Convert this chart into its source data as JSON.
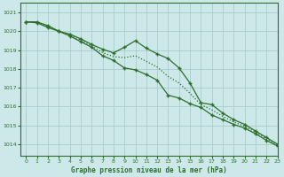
{
  "title": "Graphe pression niveau de la mer (hPa)",
  "background_color": "#cce8e8",
  "grid_color": "#aacccc",
  "line_color": "#2d6e2d",
  "xlim": [
    -0.5,
    23
  ],
  "ylim": [
    1013.4,
    1021.5
  ],
  "yticks": [
    1014,
    1015,
    1016,
    1017,
    1018,
    1019,
    1020,
    1021
  ],
  "xticks": [
    0,
    1,
    2,
    3,
    4,
    5,
    6,
    7,
    8,
    9,
    10,
    11,
    12,
    13,
    14,
    15,
    16,
    17,
    18,
    19,
    20,
    21,
    22,
    23
  ],
  "series_upper": [
    1020.5,
    1020.5,
    1020.3,
    1020.0,
    1019.85,
    1019.6,
    1019.3,
    1019.05,
    1018.85,
    1019.15,
    1019.5,
    1019.1,
    1018.8,
    1018.55,
    1018.05,
    1017.25,
    1016.2,
    1016.1,
    1015.65,
    1015.3,
    1015.05,
    1014.7,
    1014.35,
    1014.0
  ],
  "series_lower": [
    1020.5,
    1020.45,
    1020.2,
    1020.0,
    1019.75,
    1019.45,
    1019.15,
    1018.7,
    1018.45,
    1018.05,
    1017.95,
    1017.7,
    1017.4,
    1016.6,
    1016.45,
    1016.15,
    1015.95,
    1015.55,
    1015.3,
    1015.05,
    1014.85,
    1014.55,
    1014.2,
    1013.9
  ],
  "series_smooth": [
    1020.5,
    1020.48,
    1020.25,
    1020.0,
    1019.8,
    1019.52,
    1019.22,
    1018.87,
    1018.65,
    1018.6,
    1018.7,
    1018.4,
    1018.1,
    1017.6,
    1017.25,
    1016.7,
    1016.1,
    1015.82,
    1015.48,
    1015.18,
    1014.95,
    1014.63,
    1014.28,
    1013.95
  ]
}
